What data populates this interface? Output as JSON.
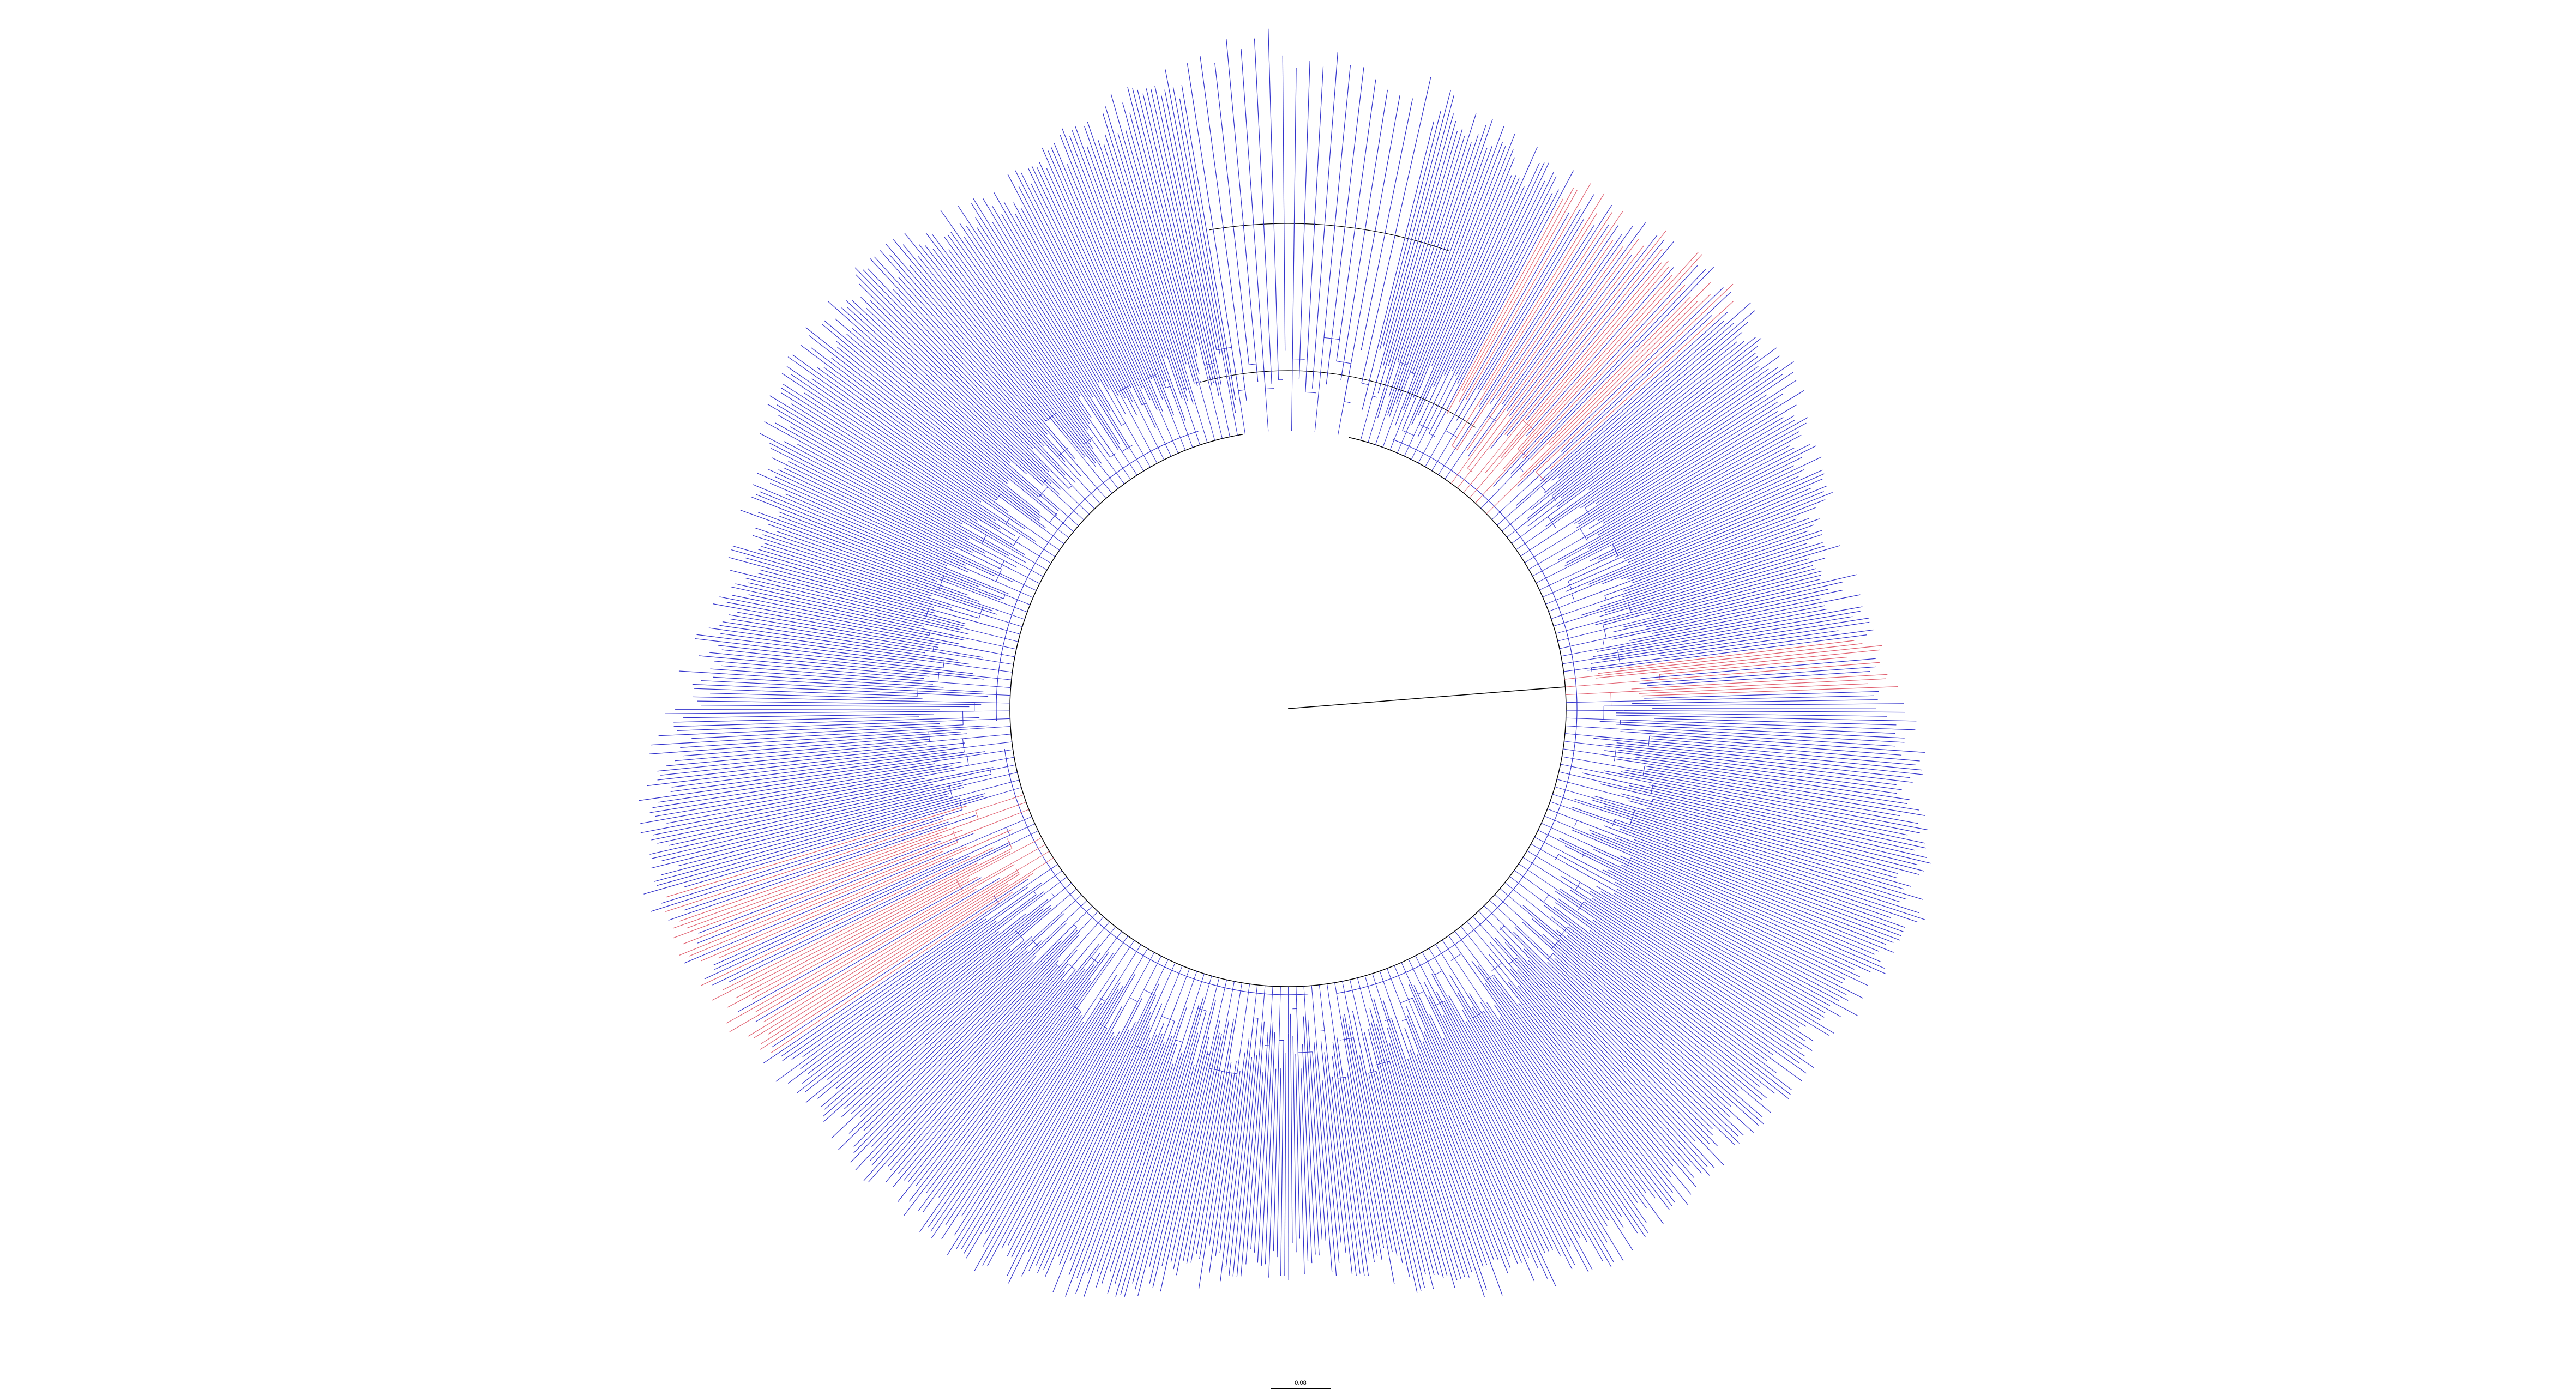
{
  "figure": {
    "type": "circular-phylogenetic-tree",
    "background_color": "#ffffff",
    "colors": {
      "backbone": "#000000",
      "main_clade": "#3333cc",
      "highlighted_clade": "#e06070"
    },
    "clade_groups": [
      {
        "name_hint": "blue",
        "color_key": "main_clade"
      },
      {
        "name_hint": "red",
        "color_key": "highlighted_clade"
      }
    ],
    "scale_bar": {
      "label": "0.08"
    }
  }
}
